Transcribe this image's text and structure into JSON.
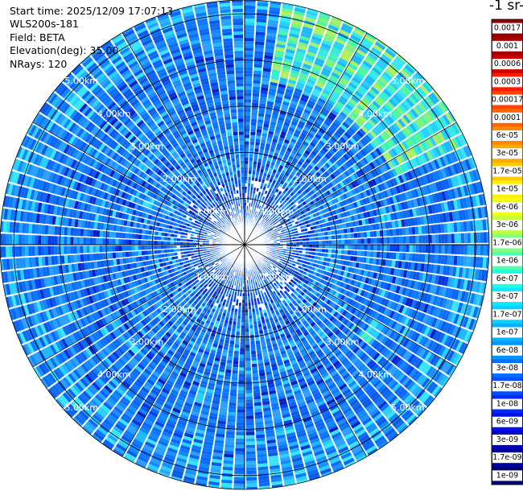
{
  "info": {
    "start_time": "Start time: 2025/12/09 17:07:13",
    "instrument": "WLS200s-181",
    "field": "Field: BETA",
    "elevation": "Elevation(deg): 35.00",
    "nrays": "NRays: 120"
  },
  "colorbar": {
    "title": "-1 sr-",
    "labels": [
      "0.0017",
      "0.001",
      "0.0006",
      "0.0003",
      "0.00017",
      "0.0001",
      "6e-05",
      "3e-05",
      "1.7e-05",
      "1e-05",
      "6e-06",
      "3e-06",
      "1.7e-06",
      "1e-06",
      "6e-07",
      "3e-07",
      "1.7e-07",
      "1e-07",
      "6e-08",
      "3e-08",
      "1.7e-08",
      "1e-08",
      "6e-09",
      "3e-09",
      "1.7e-09",
      "1e-09"
    ],
    "colors": [
      "#8b0000",
      "#a50000",
      "#cc0000",
      "#ff1a00",
      "#ff4400",
      "#ff6600",
      "#ff8800",
      "#ffaa00",
      "#ffc800",
      "#ffee00",
      "#eaff1a",
      "#c0ff40",
      "#80ff80",
      "#50ffb0",
      "#20ffe0",
      "#10e8ff",
      "#0ad0ff",
      "#00b4ff",
      "#0096ff",
      "#0070ff",
      "#0050ff",
      "#0028ff",
      "#0010e6",
      "#0000c8",
      "#00009a",
      "#000070"
    ]
  },
  "chart_data": {
    "type": "heatmap",
    "projection": "polar (PPI)",
    "field": "BETA",
    "elevation_deg": 35.0,
    "n_rays": 120,
    "range_unit": "km",
    "max_range_km": 5.3,
    "range_ring_labels": [
      "1.00km",
      "2.00km",
      "3.00km",
      "4.00km",
      "5.00km"
    ],
    "range_rings_km": [
      1,
      2,
      3,
      4,
      5
    ],
    "background_value": "1e-07",
    "enhanced_regions": [
      {
        "azimuth_deg": [
          10,
          65
        ],
        "range_km": [
          3.6,
          5.3
        ],
        "value": "3e-07 to 1e-06"
      },
      {
        "azimuth_deg": [
          120,
          130
        ],
        "range_km": [
          3.2,
          3.5
        ],
        "value": "1e-06"
      }
    ],
    "colorbar_min": "1e-09",
    "colorbar_max": "0.0017"
  }
}
